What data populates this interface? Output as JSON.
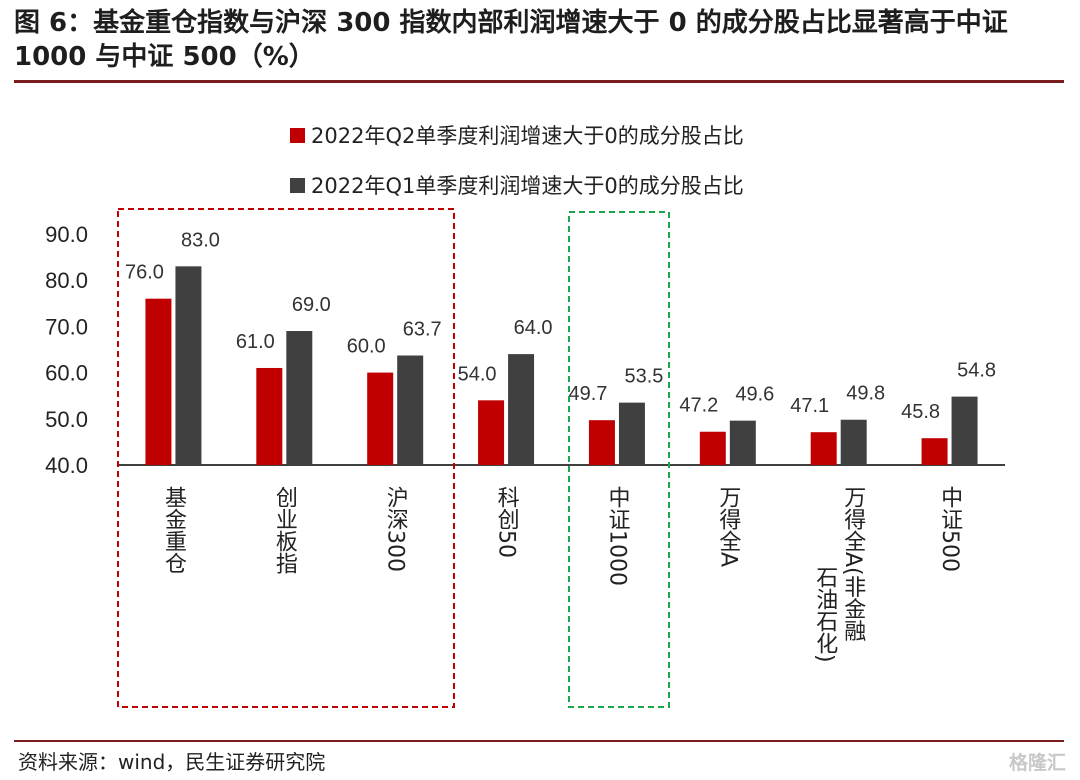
{
  "title": "图 6：基金重仓指数与沪深 300 指数内部利润增速大于 0 的成分股占比显著高于中证 1000 与中证 500（%）",
  "source": "资料来源：wind，民生证券研究院",
  "watermark": "格隆汇",
  "colors": {
    "q2": "#c00000",
    "q1": "#404040",
    "red_box": "#c00000",
    "green_box": "#1aa64a"
  },
  "chart_data": {
    "type": "bar",
    "categories": [
      "基金重仓",
      "创业板指",
      "沪深300",
      "科创50",
      "中证1000",
      "万得全A",
      "万得全A(非金融石油石化)",
      "中证500"
    ],
    "series": [
      {
        "name": "2022年Q2单季度利润增速大于0的成分股占比",
        "values": [
          76.0,
          61.0,
          60.0,
          54.0,
          49.7,
          47.2,
          47.1,
          45.8
        ]
      },
      {
        "name": "2022年Q1单季度利润增速大于0的成分股占比",
        "values": [
          83.0,
          69.0,
          63.7,
          64.0,
          53.5,
          49.6,
          49.8,
          54.8
        ]
      }
    ],
    "yticks": [
      "40.0",
      "50.0",
      "60.0",
      "70.0",
      "80.0",
      "90.0"
    ],
    "ylim": [
      40,
      90
    ],
    "legend": "top",
    "grid": false
  }
}
